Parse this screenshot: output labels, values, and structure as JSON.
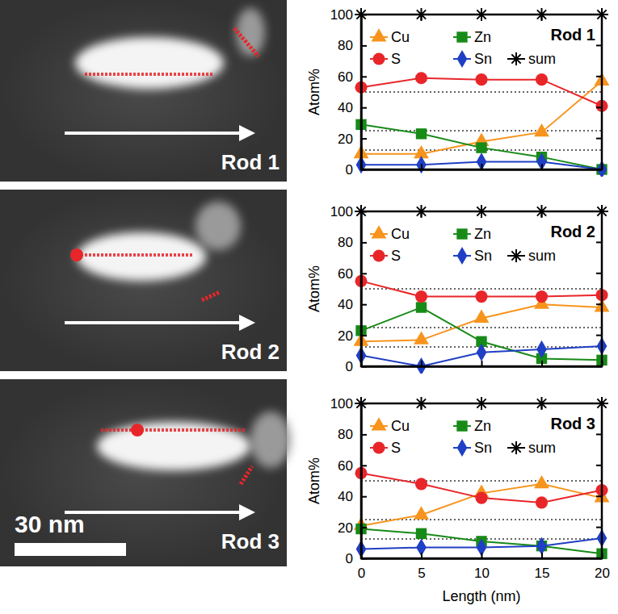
{
  "chart_data": [
    {
      "type": "line",
      "title": "Rod 1",
      "ylabel": "Atom%",
      "x": [
        0,
        5,
        10,
        15,
        20
      ],
      "xlim": [
        0,
        20
      ],
      "xticks": [
        0,
        5,
        10,
        15,
        20
      ],
      "ylim": [
        0,
        100
      ],
      "yticks": [
        0,
        20,
        40,
        60,
        80,
        100
      ],
      "hlines": [
        12.5,
        25,
        50
      ],
      "tick_labels": "y",
      "legend": "top",
      "series": [
        {
          "name": "Cu",
          "color": "#f7941d",
          "marker": "triangle",
          "values": [
            10,
            10,
            18,
            24,
            57
          ]
        },
        {
          "name": "Zn",
          "color": "#178a17",
          "marker": "square",
          "values": [
            29,
            23,
            14,
            8,
            0
          ]
        },
        {
          "name": "S",
          "color": "#e8262a",
          "marker": "circle",
          "values": [
            53,
            59,
            58,
            58,
            41
          ]
        },
        {
          "name": "Sn",
          "color": "#1f3fc4",
          "marker": "diamond",
          "values": [
            3,
            3,
            5,
            5,
            0
          ]
        },
        {
          "name": "sum",
          "color": "#000000",
          "marker": "asterisk",
          "values": [
            100,
            100,
            100,
            100,
            100
          ]
        }
      ]
    },
    {
      "type": "line",
      "title": "Rod 2",
      "ylabel": "Atom%",
      "x": [
        0,
        5,
        10,
        15,
        20
      ],
      "xlim": [
        0,
        20
      ],
      "xticks": [
        0,
        5,
        10,
        15,
        20
      ],
      "ylim": [
        0,
        100
      ],
      "yticks": [
        0,
        20,
        40,
        60,
        80,
        100
      ],
      "hlines": [
        12.5,
        25,
        50
      ],
      "tick_labels": "y",
      "legend": "top",
      "series": [
        {
          "name": "Cu",
          "color": "#f7941d",
          "marker": "triangle",
          "values": [
            16,
            17,
            31,
            40,
            38
          ]
        },
        {
          "name": "Zn",
          "color": "#178a17",
          "marker": "square",
          "values": [
            23,
            38,
            16,
            5,
            4
          ]
        },
        {
          "name": "S",
          "color": "#e8262a",
          "marker": "circle",
          "values": [
            55,
            45,
            45,
            45,
            46
          ]
        },
        {
          "name": "Sn",
          "color": "#1f3fc4",
          "marker": "diamond",
          "values": [
            7,
            0,
            9,
            11,
            13
          ]
        },
        {
          "name": "sum",
          "color": "#000000",
          "marker": "asterisk",
          "values": [
            100,
            100,
            100,
            100,
            100
          ]
        }
      ]
    },
    {
      "type": "line",
      "title": "Rod 3",
      "ylabel": "Atom%",
      "xlabel": "Length (nm)",
      "x": [
        0,
        5,
        10,
        15,
        20
      ],
      "xlim": [
        0,
        20
      ],
      "xticks": [
        0,
        5,
        10,
        15,
        20
      ],
      "ylim": [
        0,
        100
      ],
      "yticks": [
        0,
        20,
        40,
        60,
        80,
        100
      ],
      "hlines": [
        12.5,
        25,
        50
      ],
      "legend": "top",
      "series": [
        {
          "name": "Cu",
          "color": "#f7941d",
          "marker": "triangle",
          "values": [
            21,
            28,
            42,
            48,
            39
          ]
        },
        {
          "name": "Zn",
          "color": "#178a17",
          "marker": "square",
          "values": [
            19,
            16,
            11,
            8,
            3
          ]
        },
        {
          "name": "S",
          "color": "#e8262a",
          "marker": "circle",
          "values": [
            55,
            48,
            39,
            36,
            44
          ]
        },
        {
          "name": "Sn",
          "color": "#1f3fc4",
          "marker": "diamond",
          "values": [
            6,
            7,
            7,
            8,
            13
          ]
        },
        {
          "name": "sum",
          "color": "#000000",
          "marker": "asterisk",
          "values": [
            100,
            100,
            100,
            100,
            100
          ]
        }
      ]
    }
  ],
  "images": [
    {
      "label": "Rod 1"
    },
    {
      "label": "Rod 2"
    },
    {
      "label": "Rod 3"
    }
  ],
  "scale_bar": "30 nm"
}
